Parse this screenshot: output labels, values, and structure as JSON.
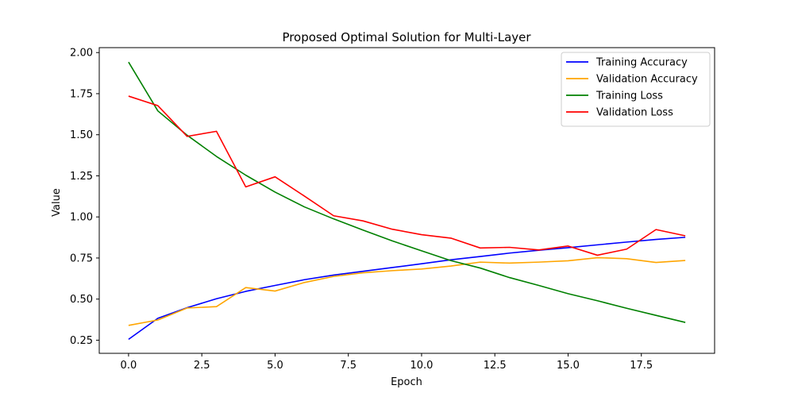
{
  "chart_data": {
    "type": "line",
    "title": "Proposed Optimal Solution for Multi-Layer",
    "xlabel": "Epoch",
    "ylabel": "Value",
    "xlim": [
      -1,
      20
    ],
    "ylim": [
      0.17,
      2.03
    ],
    "xticks": [
      0,
      2.5,
      5,
      7.5,
      10,
      12.5,
      15,
      17.5
    ],
    "xtick_labels": [
      "0.0",
      "2.5",
      "5.0",
      "7.5",
      "10.0",
      "12.5",
      "15.0",
      "17.5"
    ],
    "yticks": [
      0.25,
      0.5,
      0.75,
      1.0,
      1.25,
      1.5,
      1.75,
      2.0
    ],
    "ytick_labels": [
      "0.25",
      "0.50",
      "0.75",
      "1.00",
      "1.25",
      "1.50",
      "1.75",
      "2.00"
    ],
    "grid": false,
    "legend_position": "top-right",
    "x": [
      0,
      1,
      2,
      3,
      4,
      5,
      6,
      7,
      8,
      9,
      10,
      11,
      12,
      13,
      14,
      15,
      16,
      17,
      18,
      19
    ],
    "series": [
      {
        "name": "Training Accuracy",
        "color": "#0000ff",
        "values": [
          0.255,
          0.383,
          0.448,
          0.502,
          0.547,
          0.583,
          0.618,
          0.646,
          0.669,
          0.692,
          0.715,
          0.739,
          0.759,
          0.78,
          0.797,
          0.813,
          0.83,
          0.847,
          0.863,
          0.876
        ]
      },
      {
        "name": "Validation Accuracy",
        "color": "#ffa500",
        "values": [
          0.34,
          0.373,
          0.446,
          0.454,
          0.57,
          0.549,
          0.601,
          0.638,
          0.66,
          0.673,
          0.683,
          0.701,
          0.725,
          0.719,
          0.725,
          0.733,
          0.752,
          0.746,
          0.723,
          0.735
        ]
      },
      {
        "name": "Training Loss",
        "color": "#008000",
        "values": [
          1.942,
          1.645,
          1.497,
          1.368,
          1.254,
          1.151,
          1.061,
          0.988,
          0.92,
          0.854,
          0.794,
          0.734,
          0.689,
          0.631,
          0.583,
          0.533,
          0.49,
          0.444,
          0.401,
          0.358
        ]
      },
      {
        "name": "Validation Loss",
        "color": "#ff0000",
        "values": [
          1.735,
          1.677,
          1.49,
          1.521,
          1.183,
          1.244,
          1.127,
          1.007,
          0.976,
          0.925,
          0.892,
          0.871,
          0.811,
          0.815,
          0.799,
          0.823,
          0.767,
          0.804,
          0.923,
          0.885
        ]
      }
    ]
  }
}
